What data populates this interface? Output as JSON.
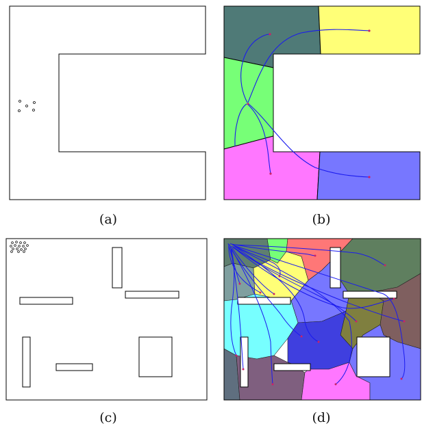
{
  "captions": {
    "a": "(a)",
    "b": "(b)",
    "c": "(c)",
    "d": "(d)"
  },
  "colors": {
    "outline": "#000000",
    "path": "#1a1aee",
    "goal": "#cc2266",
    "region_teal": "#4f7a77",
    "region_yellow": "#ffff77",
    "region_green": "#77ff77",
    "region_magenta": "#ff77ff",
    "region_blue": "#7777ff",
    "region_cyan": "#77ffff",
    "region_red": "#ff7777",
    "region_olive": "#7f7f3f",
    "region_brown": "#7f5f5f",
    "region_purple": "#7f5f7f",
    "region_darkgreen": "#5f7f5f",
    "region_slate": "#7f9f9f"
  },
  "panels": {
    "a": {
      "type": "U-shaped environment",
      "agents": 5
    },
    "b": {
      "type": "Voronoi partition with agent trajectories",
      "regions": 5
    },
    "c": {
      "type": "environment with rectangular obstacles",
      "agents": 16,
      "obstacles": 6
    },
    "d": {
      "type": "Voronoi partition with agent trajectories",
      "regions": 16
    }
  }
}
